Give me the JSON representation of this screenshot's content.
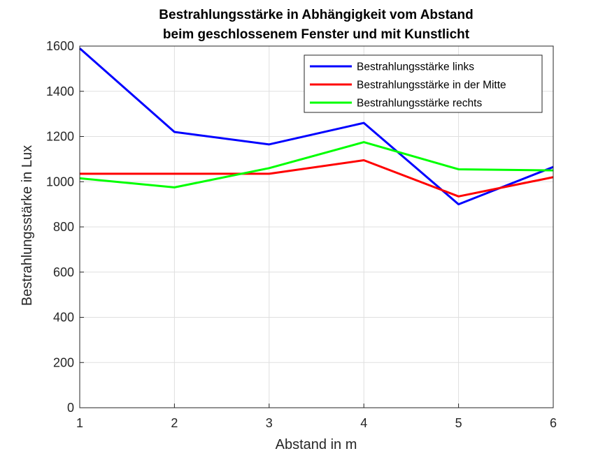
{
  "chart_data": {
    "type": "line",
    "title": [
      "Bestrahlungsstärke in Abhängigkeit vom Abstand",
      "beim geschlossenem Fenster und mit Kunstlicht"
    ],
    "xlabel": "Abstand in m",
    "ylabel": "Bestrahlungsstärke in Lux",
    "xlim": [
      1,
      6
    ],
    "ylim": [
      0,
      1600
    ],
    "xticks": [
      1,
      2,
      3,
      4,
      5,
      6
    ],
    "yticks": [
      0,
      200,
      400,
      600,
      800,
      1000,
      1200,
      1400,
      1600
    ],
    "grid": true,
    "legend_position": "top-right",
    "x": [
      1,
      2,
      3,
      4,
      5,
      6
    ],
    "series": [
      {
        "name": "Bestrahlungsstärke links",
        "color": "#0000ff",
        "values": [
          1590,
          1220,
          1165,
          1260,
          900,
          1065
        ]
      },
      {
        "name": "Bestrahlungsstärke in der Mitte",
        "color": "#ff0000",
        "values": [
          1035,
          1035,
          1035,
          1095,
          935,
          1020
        ]
      },
      {
        "name": "Bestrahlungsstärke rechts",
        "color": "#00ff00",
        "values": [
          1015,
          975,
          1060,
          1175,
          1055,
          1050
        ]
      }
    ]
  }
}
